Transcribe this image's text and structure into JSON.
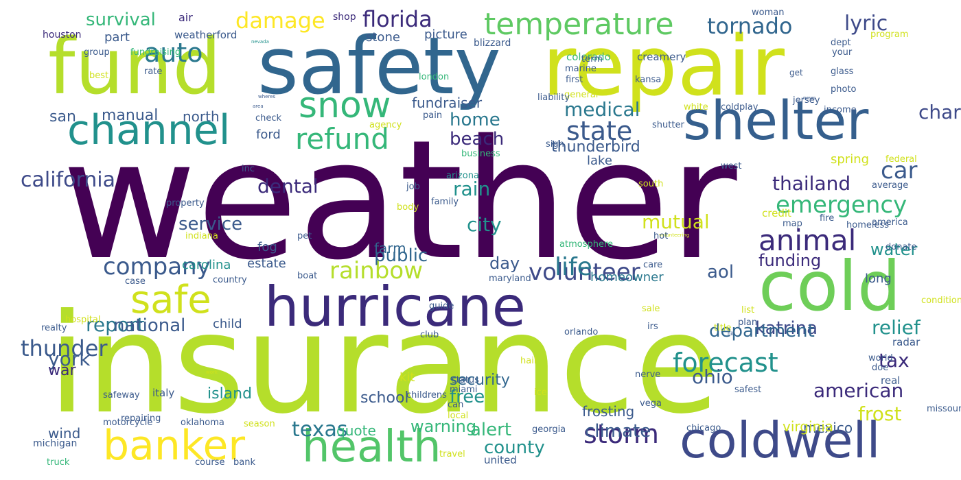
{
  "palette": {
    "dark_purple": "#440154",
    "indigo": "#3b2a7a",
    "blue": "#355f8d",
    "slate": "#31668e",
    "teal": "#21918c",
    "green": "#35b779",
    "light_green": "#6ece58",
    "lime": "#b5de2b",
    "yellow": "#fde725"
  },
  "words": [
    {
      "text": "weather"
    },
    {
      "text": "insurance"
    },
    {
      "text": "repair"
    },
    {
      "text": "safety"
    },
    {
      "text": "fund"
    },
    {
      "text": "shelter"
    },
    {
      "text": "cold"
    },
    {
      "text": "hurricane"
    },
    {
      "text": "coldwell"
    },
    {
      "text": "health"
    },
    {
      "text": "banker"
    },
    {
      "text": "channel"
    },
    {
      "text": "safe"
    },
    {
      "text": "snow"
    },
    {
      "text": "temperature"
    },
    {
      "text": "auto"
    },
    {
      "text": "refund"
    },
    {
      "text": "animal"
    },
    {
      "text": "storm"
    },
    {
      "text": "state"
    },
    {
      "text": "company"
    },
    {
      "text": "volunteer"
    },
    {
      "text": "rainbow"
    },
    {
      "text": "forecast"
    },
    {
      "text": "emergency"
    },
    {
      "text": "life"
    },
    {
      "text": "texas"
    },
    {
      "text": "thunder"
    },
    {
      "text": "florida"
    },
    {
      "text": "tornado"
    },
    {
      "text": "damage"
    },
    {
      "text": "california"
    },
    {
      "text": "lyric"
    },
    {
      "text": "charity"
    },
    {
      "text": "thailand"
    },
    {
      "text": "car"
    },
    {
      "text": "american"
    },
    {
      "text": "mutual"
    },
    {
      "text": "medical"
    },
    {
      "text": "survival"
    },
    {
      "text": "beach"
    },
    {
      "text": "home"
    },
    {
      "text": "rain"
    },
    {
      "text": "city"
    },
    {
      "text": "dental"
    },
    {
      "text": "service"
    },
    {
      "text": "report"
    },
    {
      "text": "national"
    },
    {
      "text": "york"
    },
    {
      "text": "climate"
    },
    {
      "text": "county"
    },
    {
      "text": "alert"
    },
    {
      "text": "frost"
    },
    {
      "text": "tax"
    },
    {
      "text": "relief"
    },
    {
      "text": "katrina"
    },
    {
      "text": "ohio"
    },
    {
      "text": "warning"
    },
    {
      "text": "free"
    },
    {
      "text": "security"
    },
    {
      "text": "funding"
    },
    {
      "text": "water"
    },
    {
      "text": "public"
    },
    {
      "text": "department"
    },
    {
      "text": "aol"
    },
    {
      "text": "day"
    },
    {
      "text": "thunderbird"
    },
    {
      "text": "fundraiser"
    },
    {
      "text": "manual"
    },
    {
      "text": "north"
    },
    {
      "text": "san"
    },
    {
      "text": "school"
    },
    {
      "text": "island"
    },
    {
      "text": "war"
    },
    {
      "text": "wind"
    },
    {
      "text": "quote"
    },
    {
      "text": "kit"
    },
    {
      "text": "mexico"
    },
    {
      "text": "virginia"
    },
    {
      "text": "frosting"
    },
    {
      "text": "homeowner"
    },
    {
      "text": "farm"
    },
    {
      "text": "fog"
    },
    {
      "text": "estate"
    },
    {
      "text": "carolina"
    },
    {
      "text": "child"
    },
    {
      "text": "spring"
    },
    {
      "text": "lake"
    },
    {
      "text": "stone"
    },
    {
      "text": "picture"
    },
    {
      "text": "part"
    },
    {
      "text": "houston"
    },
    {
      "text": "air"
    },
    {
      "text": "shop"
    },
    {
      "text": "weatherford"
    },
    {
      "text": "blizzard"
    },
    {
      "text": "colorado"
    },
    {
      "text": "creamery"
    },
    {
      "text": "woman"
    },
    {
      "text": "program"
    },
    {
      "text": "dept"
    },
    {
      "text": "your"
    },
    {
      "text": "jersey"
    },
    {
      "text": "group"
    },
    {
      "text": "fundraising"
    },
    {
      "text": "nevada"
    },
    {
      "text": "get"
    },
    {
      "text": "term"
    },
    {
      "text": "marine"
    },
    {
      "text": "kansa"
    },
    {
      "text": "first"
    },
    {
      "text": "glass"
    },
    {
      "text": "general"
    },
    {
      "text": "photo"
    },
    {
      "text": "london"
    },
    {
      "text": "best"
    },
    {
      "text": "rate"
    },
    {
      "text": "wheres"
    },
    {
      "text": "area"
    },
    {
      "text": "news"
    },
    {
      "text": "liability"
    },
    {
      "text": "white"
    },
    {
      "text": "coldplay"
    },
    {
      "text": "income"
    },
    {
      "text": "check"
    },
    {
      "text": "pain"
    },
    {
      "text": "agency"
    },
    {
      "text": "shutter"
    },
    {
      "text": "sign"
    },
    {
      "text": "ford"
    },
    {
      "text": "business"
    },
    {
      "text": "federal"
    },
    {
      "text": "west"
    },
    {
      "text": "average"
    },
    {
      "text": "inc"
    },
    {
      "text": "arizona"
    },
    {
      "text": "job"
    },
    {
      "text": "family"
    },
    {
      "text": "body"
    },
    {
      "text": "property"
    },
    {
      "text": "south"
    },
    {
      "text": "atmosphere"
    },
    {
      "text": "credit"
    },
    {
      "text": "map"
    },
    {
      "text": "fire"
    },
    {
      "text": "america"
    },
    {
      "text": "homeless"
    },
    {
      "text": "volunteering"
    },
    {
      "text": "indiana"
    },
    {
      "text": "pet"
    },
    {
      "text": "hot"
    },
    {
      "text": "donate"
    },
    {
      "text": "long"
    },
    {
      "text": "care"
    },
    {
      "text": "case"
    },
    {
      "text": "country"
    },
    {
      "text": "boat"
    },
    {
      "text": "maryland"
    },
    {
      "text": "hospital"
    },
    {
      "text": "condition"
    },
    {
      "text": "guide"
    },
    {
      "text": "sale"
    },
    {
      "text": "list"
    },
    {
      "text": "plan"
    },
    {
      "text": "title"
    },
    {
      "text": "irs"
    },
    {
      "text": "radar"
    },
    {
      "text": "realty"
    },
    {
      "text": "club"
    },
    {
      "text": "orlando"
    },
    {
      "text": "hill"
    },
    {
      "text": "safeway"
    },
    {
      "text": "repairing"
    },
    {
      "text": "childrens"
    },
    {
      "text": "hail"
    },
    {
      "text": "work"
    },
    {
      "text": "world"
    },
    {
      "text": "doe"
    },
    {
      "text": "real"
    },
    {
      "text": "missouri"
    },
    {
      "text": "status"
    },
    {
      "text": "miami"
    },
    {
      "text": "nerve"
    },
    {
      "text": "safest"
    },
    {
      "text": "italy"
    },
    {
      "text": "ice"
    },
    {
      "text": "can"
    },
    {
      "text": "vega"
    },
    {
      "text": "local"
    },
    {
      "text": "michigan"
    },
    {
      "text": "motorcycle"
    },
    {
      "text": "oklahoma"
    },
    {
      "text": "season"
    },
    {
      "text": "georgia"
    },
    {
      "text": "chicago"
    },
    {
      "text": "truck"
    },
    {
      "text": "course"
    },
    {
      "text": "bank"
    },
    {
      "text": "travel"
    },
    {
      "text": "united"
    }
  ]
}
